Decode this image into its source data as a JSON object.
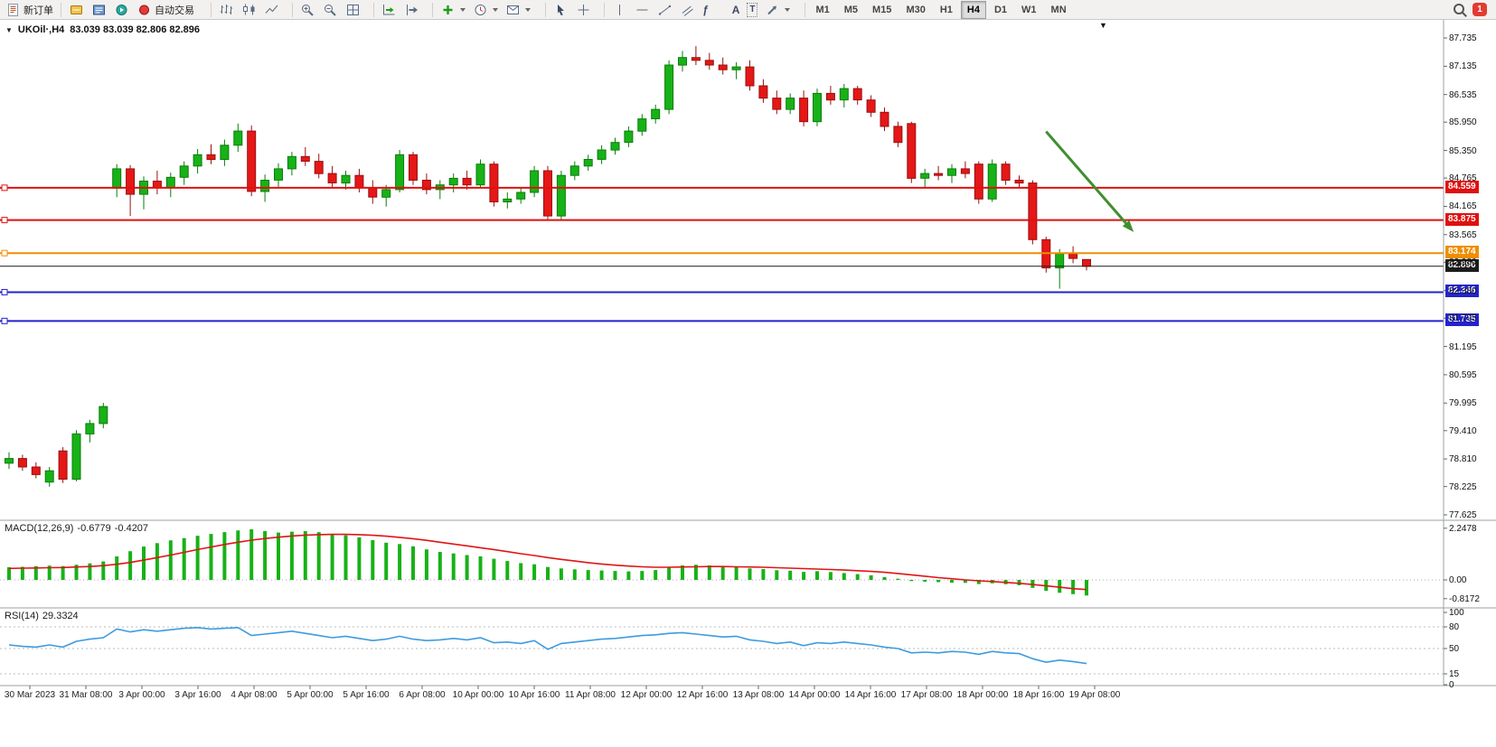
{
  "toolbar": {
    "new_order": "新订单",
    "autotrading": "自动交易",
    "glyphs": {
      "fibonacci": "ƒ",
      "text_tool": "A",
      "label_tool": "T"
    },
    "timeframe_labels": [
      "M1",
      "M5",
      "M15",
      "M30",
      "H1",
      "H4",
      "D1",
      "W1",
      "MN"
    ],
    "active_timeframe": "H4",
    "notification_count": "1"
  },
  "chart": {
    "symbol_title": "UKOil·,H4",
    "ohlc": "83.039 83.039 82.806 82.896",
    "dropdown_triangle": "▼",
    "scroll_marker": "▼"
  },
  "indicators": {
    "macd": {
      "label": "MACD(12,26,9)",
      "main_value": "-0.6779",
      "signal_value": "-0.4207",
      "scale": [
        "2.2478",
        "0.00",
        "-0.8172"
      ]
    },
    "rsi": {
      "label": "RSI(14)",
      "value": "29.3324",
      "scale": [
        "100",
        "80",
        "50",
        "15",
        "0"
      ]
    }
  },
  "chart_data": {
    "type": "candlestick",
    "symbol": "UKOil",
    "timeframe": "H4",
    "ylim": [
      77.625,
      87.735
    ],
    "up_color": "#17b217",
    "down_color": "#e51717",
    "up_stroke": "#0a7d0a",
    "down_stroke": "#991010",
    "price_axis_labels": [
      "87.735",
      "87.135",
      "86.535",
      "85.950",
      "85.350",
      "84.765",
      "84.165",
      "83.565",
      "82.980",
      "82.380",
      "81.795",
      "81.195",
      "80.595",
      "79.995",
      "79.410",
      "78.810",
      "78.225",
      "77.625"
    ],
    "time_labels": [
      "30 Mar 2023",
      "31 Mar 08:00",
      "3 Apr 00:00",
      "3 Apr 16:00",
      "4 Apr 08:00",
      "5 Apr 00:00",
      "5 Apr 16:00",
      "6 Apr 08:00",
      "10 Apr 00:00",
      "10 Apr 16:00",
      "11 Apr 08:00",
      "12 Apr 00:00",
      "12 Apr 16:00",
      "13 Apr 08:00",
      "14 Apr 00:00",
      "14 Apr 16:00",
      "17 Apr 08:00",
      "18 Apr 00:00",
      "18 Apr 16:00",
      "19 Apr 08:00"
    ],
    "candles_ohlc": [
      [
        78.72,
        78.95,
        78.6,
        78.82
      ],
      [
        78.82,
        78.9,
        78.56,
        78.64
      ],
      [
        78.64,
        78.74,
        78.4,
        78.48
      ],
      [
        78.32,
        78.64,
        78.22,
        78.56
      ],
      [
        78.98,
        79.06,
        78.3,
        78.38
      ],
      [
        78.38,
        79.42,
        78.34,
        79.34
      ],
      [
        79.34,
        79.64,
        79.16,
        79.56
      ],
      [
        79.56,
        80.0,
        79.46,
        79.92
      ],
      [
        84.55,
        85.06,
        84.36,
        84.96
      ],
      [
        84.96,
        85.04,
        83.96,
        84.42
      ],
      [
        84.42,
        84.8,
        84.1,
        84.7
      ],
      [
        84.7,
        84.92,
        84.42,
        84.56
      ],
      [
        84.56,
        84.88,
        84.36,
        84.78
      ],
      [
        84.78,
        85.12,
        84.62,
        85.02
      ],
      [
        85.02,
        85.38,
        84.86,
        85.26
      ],
      [
        85.26,
        85.48,
        85.06,
        85.16
      ],
      [
        85.16,
        85.58,
        85.02,
        85.46
      ],
      [
        85.46,
        85.92,
        85.32,
        85.76
      ],
      [
        85.76,
        85.88,
        84.38,
        84.48
      ],
      [
        84.48,
        84.84,
        84.26,
        84.72
      ],
      [
        84.72,
        85.08,
        84.56,
        84.96
      ],
      [
        84.96,
        85.32,
        84.82,
        85.22
      ],
      [
        85.22,
        85.42,
        85.02,
        85.12
      ],
      [
        85.12,
        85.28,
        84.76,
        84.86
      ],
      [
        84.86,
        85.02,
        84.56,
        84.66
      ],
      [
        84.66,
        84.92,
        84.52,
        84.82
      ],
      [
        84.82,
        84.96,
        84.46,
        84.56
      ],
      [
        84.56,
        84.72,
        84.22,
        84.36
      ],
      [
        84.36,
        84.62,
        84.16,
        84.52
      ],
      [
        84.52,
        85.36,
        84.46,
        85.26
      ],
      [
        85.26,
        85.32,
        84.62,
        84.72
      ],
      [
        84.72,
        84.86,
        84.42,
        84.52
      ],
      [
        84.52,
        84.72,
        84.32,
        84.62
      ],
      [
        84.62,
        84.86,
        84.46,
        84.76
      ],
      [
        84.76,
        84.92,
        84.52,
        84.62
      ],
      [
        84.62,
        85.16,
        84.56,
        85.06
      ],
      [
        85.06,
        85.12,
        84.16,
        84.26
      ],
      [
        84.26,
        84.46,
        84.12,
        84.32
      ],
      [
        84.32,
        84.56,
        84.22,
        84.46
      ],
      [
        84.46,
        85.02,
        84.36,
        84.92
      ],
      [
        84.92,
        85.02,
        83.86,
        83.96
      ],
      [
        83.96,
        84.92,
        83.86,
        84.82
      ],
      [
        84.82,
        85.12,
        84.72,
        85.02
      ],
      [
        85.02,
        85.26,
        84.92,
        85.16
      ],
      [
        85.16,
        85.46,
        85.06,
        85.36
      ],
      [
        85.36,
        85.62,
        85.26,
        85.52
      ],
      [
        85.52,
        85.86,
        85.42,
        85.76
      ],
      [
        85.76,
        86.12,
        85.66,
        86.02
      ],
      [
        86.02,
        86.32,
        85.92,
        86.22
      ],
      [
        86.22,
        87.26,
        86.12,
        87.16
      ],
      [
        87.16,
        87.46,
        87.02,
        87.32
      ],
      [
        87.32,
        87.56,
        87.16,
        87.26
      ],
      [
        87.26,
        87.42,
        87.06,
        87.16
      ],
      [
        87.16,
        87.32,
        86.96,
        87.06
      ],
      [
        87.06,
        87.22,
        86.86,
        87.12
      ],
      [
        87.12,
        87.26,
        86.62,
        86.72
      ],
      [
        86.72,
        86.86,
        86.36,
        86.46
      ],
      [
        86.46,
        86.62,
        86.12,
        86.22
      ],
      [
        86.22,
        86.56,
        86.12,
        86.46
      ],
      [
        86.46,
        86.62,
        85.86,
        85.96
      ],
      [
        85.96,
        86.66,
        85.86,
        86.56
      ],
      [
        86.56,
        86.72,
        86.32,
        86.42
      ],
      [
        86.42,
        86.76,
        86.26,
        86.66
      ],
      [
        86.66,
        86.72,
        86.32,
        86.42
      ],
      [
        86.42,
        86.52,
        86.06,
        86.16
      ],
      [
        86.16,
        86.26,
        85.76,
        85.86
      ],
      [
        85.86,
        85.96,
        85.42,
        85.52
      ],
      [
        85.92,
        85.96,
        84.66,
        84.76
      ],
      [
        84.76,
        84.96,
        84.56,
        84.86
      ],
      [
        84.86,
        85.02,
        84.72,
        84.82
      ],
      [
        84.82,
        85.06,
        84.66,
        84.96
      ],
      [
        84.96,
        85.12,
        84.76,
        84.86
      ],
      [
        85.06,
        85.12,
        84.22,
        84.32
      ],
      [
        84.32,
        85.16,
        84.26,
        85.06
      ],
      [
        85.06,
        85.12,
        84.62,
        84.72
      ],
      [
        84.72,
        84.82,
        84.56,
        84.66
      ],
      [
        84.66,
        84.72,
        83.36,
        83.46
      ],
      [
        83.46,
        83.52,
        82.76,
        82.86
      ],
      [
        82.86,
        83.26,
        82.42,
        83.16
      ],
      [
        83.16,
        83.32,
        82.96,
        83.06
      ],
      [
        83.039,
        83.039,
        82.806,
        82.896
      ]
    ],
    "levels": [
      {
        "price": 84.559,
        "label": "84.559",
        "color": "#e01010",
        "current": false
      },
      {
        "price": 83.875,
        "label": "83.875",
        "color": "#e01010",
        "current": false
      },
      {
        "price": 83.174,
        "label": "83.174",
        "color": "#ef8e00",
        "current": false
      },
      {
        "price": 82.896,
        "label": "82.896",
        "color": "#1c1c1c",
        "current": true
      },
      {
        "price": 82.346,
        "label": "82.346",
        "color": "#2323cc",
        "current": false
      },
      {
        "price": 81.735,
        "label": "81.735",
        "color": "#2323cc",
        "current": false
      }
    ],
    "arrow_annotation": {
      "x1_index": 77,
      "price1": 85.75,
      "x2_index": 83.5,
      "price2": 83.62,
      "color": "#3f8f2f"
    },
    "macd": {
      "scale_range": [
        -0.8172,
        2.2478
      ],
      "histogram": [
        0.55,
        0.57,
        0.6,
        0.62,
        0.6,
        0.66,
        0.72,
        0.8,
        1.02,
        1.25,
        1.45,
        1.6,
        1.72,
        1.82,
        1.92,
        2.0,
        2.08,
        2.15,
        2.2,
        2.12,
        2.06,
        2.1,
        2.12,
        2.08,
        2.0,
        1.94,
        1.85,
        1.73,
        1.62,
        1.56,
        1.46,
        1.33,
        1.22,
        1.15,
        1.08,
        1.02,
        0.92,
        0.82,
        0.73,
        0.68,
        0.56,
        0.5,
        0.46,
        0.43,
        0.41,
        0.39,
        0.37,
        0.39,
        0.43,
        0.56,
        0.63,
        0.66,
        0.63,
        0.58,
        0.55,
        0.5,
        0.47,
        0.42,
        0.4,
        0.35,
        0.38,
        0.34,
        0.3,
        0.25,
        0.2,
        0.12,
        0.05,
        -0.05,
        -0.08,
        -0.1,
        -0.12,
        -0.13,
        -0.18,
        -0.15,
        -0.19,
        -0.23,
        -0.35,
        -0.48,
        -0.56,
        -0.62,
        -0.68
      ],
      "signal": [
        0.5,
        0.51,
        0.52,
        0.53,
        0.54,
        0.56,
        0.58,
        0.62,
        0.68,
        0.76,
        0.86,
        0.97,
        1.08,
        1.2,
        1.32,
        1.43,
        1.54,
        1.64,
        1.73,
        1.8,
        1.86,
        1.91,
        1.95,
        1.97,
        1.98,
        1.98,
        1.97,
        1.94,
        1.9,
        1.85,
        1.79,
        1.72,
        1.64,
        1.56,
        1.48,
        1.4,
        1.32,
        1.23,
        1.14,
        1.06,
        0.97,
        0.89,
        0.82,
        0.75,
        0.69,
        0.64,
        0.6,
        0.57,
        0.55,
        0.55,
        0.56,
        0.57,
        0.58,
        0.58,
        0.57,
        0.56,
        0.55,
        0.53,
        0.51,
        0.49,
        0.47,
        0.45,
        0.43,
        0.4,
        0.37,
        0.33,
        0.28,
        0.22,
        0.16,
        0.1,
        0.05,
        0.0,
        -0.04,
        -0.07,
        -0.11,
        -0.15,
        -0.2,
        -0.26,
        -0.32,
        -0.38,
        -0.42
      ]
    },
    "rsi": {
      "scale_range": [
        0,
        100
      ],
      "levels": [
        80,
        50,
        15
      ],
      "values": [
        55,
        53,
        52,
        55,
        52,
        60,
        63,
        65,
        77,
        73,
        76,
        74,
        76,
        78,
        79,
        77,
        78,
        79,
        68,
        70,
        72,
        74,
        71,
        68,
        65,
        67,
        64,
        61,
        63,
        67,
        63,
        61,
        62,
        64,
        62,
        65,
        58,
        59,
        57,
        61,
        49,
        57,
        59,
        61,
        63,
        64,
        66,
        68,
        69,
        71,
        72,
        70,
        68,
        66,
        67,
        62,
        60,
        57,
        59,
        54,
        58,
        57,
        59,
        57,
        55,
        52,
        50,
        44,
        45,
        44,
        46,
        45,
        42,
        46,
        44,
        43,
        36,
        31,
        34,
        32,
        29.3
      ]
    }
  }
}
